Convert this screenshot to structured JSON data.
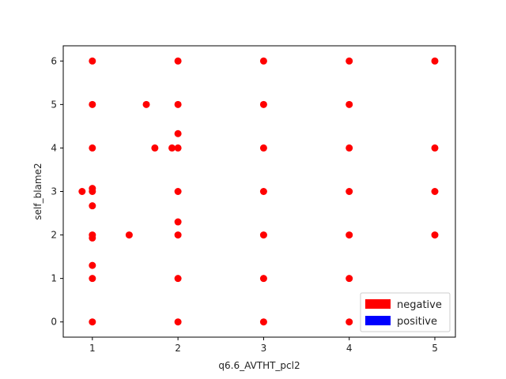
{
  "chart_data": {
    "type": "scatter",
    "xlabel": "q6.6_AVTHT_pcl2",
    "ylabel": "self_blame2",
    "xlim": [
      0.66,
      5.24
    ],
    "ylim": [
      -0.35,
      6.35
    ],
    "xticks": [
      1,
      2,
      3,
      4,
      5
    ],
    "yticks": [
      0,
      1,
      2,
      3,
      4,
      5,
      6
    ],
    "grid": false,
    "legend_position": "lower-right",
    "legend": [
      {
        "label": "negative",
        "color": "#ff0000"
      },
      {
        "label": "positive",
        "color": "#0000ff"
      }
    ],
    "series": [
      {
        "name": "negative",
        "color": "#ff0000",
        "points": [
          [
            1,
            6
          ],
          [
            2,
            6
          ],
          [
            3,
            6
          ],
          [
            4,
            6
          ],
          [
            5,
            6
          ],
          [
            1,
            5
          ],
          [
            1.63,
            5
          ],
          [
            2,
            5
          ],
          [
            3,
            5
          ],
          [
            4,
            5
          ],
          [
            2,
            4.33
          ],
          [
            1,
            4
          ],
          [
            1.73,
            4
          ],
          [
            1.93,
            4
          ],
          [
            2,
            4
          ],
          [
            3,
            4
          ],
          [
            4,
            4
          ],
          [
            5,
            4
          ],
          [
            1,
            3.07
          ],
          [
            0.88,
            3
          ],
          [
            1,
            3
          ],
          [
            2,
            3
          ],
          [
            3,
            3
          ],
          [
            4,
            3
          ],
          [
            5,
            3
          ],
          [
            1,
            2.67
          ],
          [
            2,
            2.3
          ],
          [
            1,
            2
          ],
          [
            1,
            1.93
          ],
          [
            1.43,
            2
          ],
          [
            2,
            2
          ],
          [
            3,
            2
          ],
          [
            4,
            2
          ],
          [
            5,
            2
          ],
          [
            1,
            1.3
          ],
          [
            1,
            1
          ],
          [
            2,
            1
          ],
          [
            3,
            1
          ],
          [
            4,
            1
          ],
          [
            1,
            0
          ],
          [
            2,
            0
          ],
          [
            3,
            0
          ],
          [
            4,
            0
          ]
        ]
      },
      {
        "name": "positive",
        "color": "#0000ff",
        "points": []
      }
    ]
  }
}
